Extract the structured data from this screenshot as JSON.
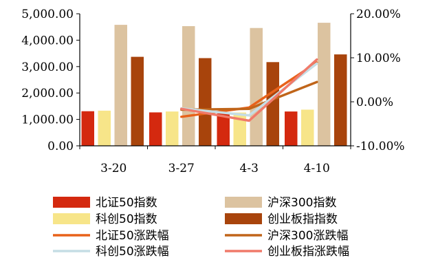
{
  "chart_data": {
    "type": "bar",
    "categories": [
      "3-20",
      "3-27",
      "4-3",
      "4-10"
    ],
    "y_left": {
      "ylim": [
        0,
        5000
      ],
      "ticks": [
        "0.00",
        "1,000.00",
        "2,000.00",
        "3,000.00",
        "4,000.00",
        "5,000.00"
      ]
    },
    "y_right": {
      "ylim": [
        -10,
        20
      ],
      "ticks": [
        "-10.00%",
        "0.00%",
        "10.00%",
        "20.00%"
      ]
    },
    "grid": false,
    "legend_placement": "bottom",
    "bar_series": [
      {
        "name": "北证50指数",
        "color": "#d4290f",
        "values": [
          1310,
          1265,
          1230,
          1300
        ]
      },
      {
        "name": "沪深300指数",
        "color": "#dcc3a0",
        "values": [
          4580,
          4530,
          4460,
          4660
        ]
      },
      {
        "name": "科创50指数",
        "color": "#f7e589",
        "values": [
          1330,
          1300,
          1260,
          1370
        ]
      },
      {
        "name": "创业板指指数",
        "color": "#a8440c",
        "values": [
          3370,
          3320,
          3170,
          3460
        ]
      }
    ],
    "line_series": [
      {
        "name": "北证50涨跌幅",
        "color": "#e8621a",
        "values": [
          null,
          -3.4,
          -1.3,
          8.9
        ]
      },
      {
        "name": "沪深300涨跌幅",
        "color": "#c0651a",
        "values": [
          null,
          -1.8,
          -1.6,
          4.5
        ]
      },
      {
        "name": "科创50涨跌幅",
        "color": "#c5dde5",
        "values": [
          null,
          -1.5,
          -3.1,
          8.7
        ]
      },
      {
        "name": "创业板指涨跌幅",
        "color": "#f07a6a",
        "values": [
          null,
          -1.6,
          -4.3,
          9.6
        ]
      }
    ]
  }
}
